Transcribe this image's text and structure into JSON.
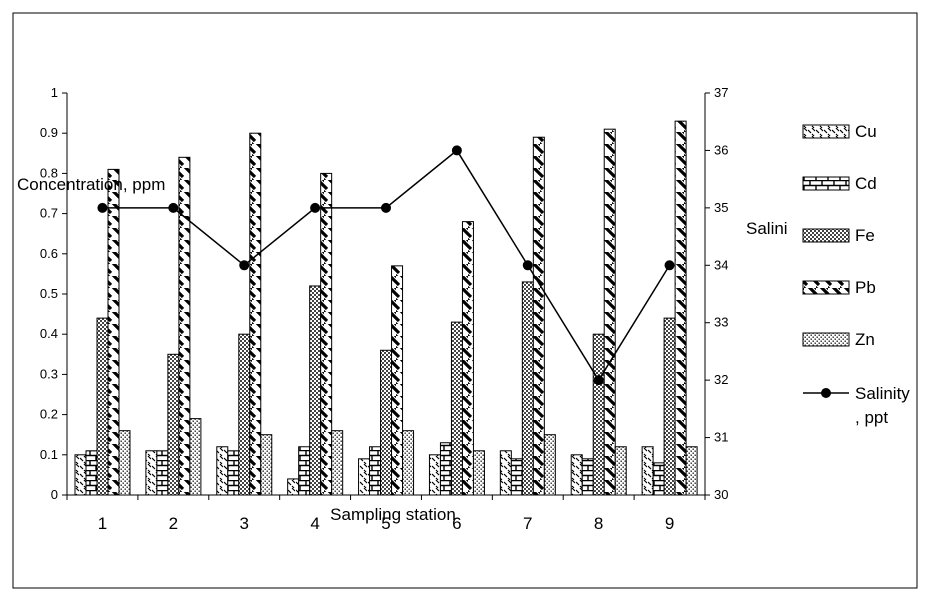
{
  "chart_data": {
    "type": "bar",
    "categories": [
      "1",
      "2",
      "3",
      "4",
      "5",
      "6",
      "7",
      "8",
      "9"
    ],
    "series": [
      {
        "name": "Cu",
        "axis": "left",
        "pattern": "diag-dash",
        "values": [
          0.1,
          0.11,
          0.12,
          0.04,
          0.09,
          0.1,
          0.11,
          0.1,
          0.12
        ]
      },
      {
        "name": "Cd",
        "axis": "left",
        "pattern": "brick",
        "values": [
          0.11,
          0.11,
          0.11,
          0.12,
          0.12,
          0.13,
          0.09,
          0.09,
          0.08
        ]
      },
      {
        "name": "Fe",
        "axis": "left",
        "pattern": "dots",
        "values": [
          0.44,
          0.35,
          0.4,
          0.52,
          0.36,
          0.43,
          0.53,
          0.4,
          0.44
        ]
      },
      {
        "name": "Pb",
        "axis": "left",
        "pattern": "diagonal-stripe",
        "values": [
          0.81,
          0.84,
          0.9,
          0.8,
          0.57,
          0.68,
          0.89,
          0.91,
          0.93
        ]
      },
      {
        "name": "Zn",
        "axis": "left",
        "pattern": "fine-dots",
        "values": [
          0.16,
          0.19,
          0.15,
          0.16,
          0.16,
          0.11,
          0.15,
          0.12,
          0.12
        ]
      }
    ],
    "line_series": {
      "name": "Salinity , ppt",
      "axis": "right",
      "values": [
        35,
        35,
        34,
        35,
        35,
        36,
        34,
        32,
        34
      ]
    },
    "xlabel": "Sampling station",
    "ylabel_left": "Concentration, ppm",
    "ylabel_right": "Salini",
    "ylim_left": [
      0,
      1
    ],
    "ylim_right": [
      30,
      37
    ],
    "yticks_left": [
      "0",
      "0.1",
      "0.2",
      "0.3",
      "0.4",
      "0.5",
      "0.6",
      "0.7",
      "0.8",
      "0.9",
      "1"
    ],
    "yticks_right": [
      "30",
      "31",
      "32",
      "33",
      "34",
      "35",
      "36",
      "37"
    ],
    "grid": false,
    "legend_position": "right",
    "legend": [
      {
        "label": "Cu",
        "type": "bar",
        "pattern": "diag-dash"
      },
      {
        "label": "Cd",
        "type": "bar",
        "pattern": "brick"
      },
      {
        "label": "Fe",
        "type": "bar",
        "pattern": "dots"
      },
      {
        "label": "Pb",
        "type": "bar",
        "pattern": "diagonal-stripe"
      },
      {
        "label": "Zn",
        "type": "bar",
        "pattern": "fine-dots"
      },
      {
        "label": "Salinity",
        "label2": ", ppt",
        "type": "line-marker"
      }
    ],
    "line_color": "#000000",
    "bar_outline": "#000000"
  }
}
